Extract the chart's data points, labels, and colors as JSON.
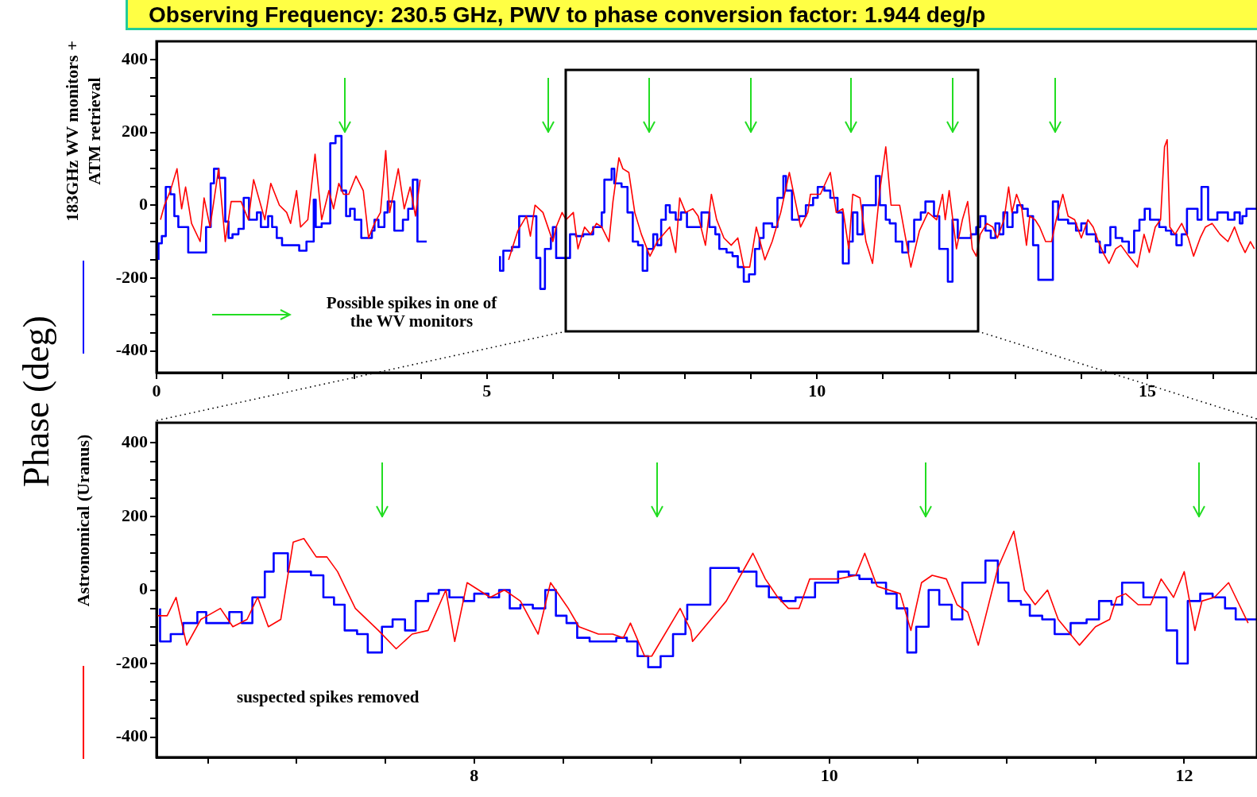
{
  "chart_data": [
    {
      "type": "line",
      "title": "Observing Frequency: 230.5 GHz, PWV to phase conversion factor: 1.944 deg/p",
      "ylabel": "Phase (deg)",
      "legend": "left",
      "grid": false,
      "marker": "none",
      "annotations": [
        "Possible spikes in one of the WV monitors"
      ],
      "xlim": [
        0,
        16.66
      ],
      "ylim": [
        -460,
        450
      ],
      "xticks": [
        0,
        {
          "value": 1,
          "label": null
        },
        {
          "value": 2,
          "label": null
        },
        {
          "value": 3,
          "label": null
        },
        {
          "value": 4,
          "label": null
        },
        5,
        {
          "value": 6,
          "label": null
        },
        {
          "value": 7,
          "label": null
        },
        {
          "value": 8,
          "label": null
        },
        {
          "value": 9,
          "label": null
        },
        10,
        {
          "value": 11,
          "label": null
        },
        {
          "value": 12,
          "label": null
        },
        {
          "value": 13,
          "label": null
        },
        {
          "value": 14,
          "label": null
        },
        15,
        {
          "value": 16,
          "label": null
        }
      ],
      "yticks": [
        -400,
        {
          "value": -350,
          "label": null
        },
        {
          "value": -300,
          "label": null
        },
        {
          "value": -250,
          "label": null
        },
        -200,
        {
          "value": -150,
          "label": null
        },
        {
          "value": -100,
          "label": null
        },
        {
          "value": -50,
          "label": null
        },
        0,
        {
          "value": 50,
          "label": null
        },
        {
          "value": 100,
          "label": null
        },
        {
          "value": 150,
          "label": null
        },
        200,
        {
          "value": 250,
          "label": null
        },
        {
          "value": 300,
          "label": null
        },
        {
          "value": 350,
          "label": null
        },
        400
      ],
      "series": [
        {
          "name": "183GHz WV monitors + ATM retrieval",
          "type": "step",
          "color": "#0000ff",
          "x": [
            0.03,
            0.08,
            0.14,
            0.21,
            0.27,
            0.33,
            0.48,
            0.75,
            0.82,
            0.87,
            0.94,
            1.04,
            1.09,
            1.15,
            1.24,
            1.32,
            1.4,
            1.52,
            1.58,
            1.69,
            1.75,
            1.82,
            1.9,
            2.03,
            2.16,
            2.27,
            2.38,
            2.41,
            2.5,
            2.63,
            2.71,
            2.8,
            2.87,
            2.93,
            3.0,
            3.1,
            3.13,
            3.26,
            3.3,
            3.36,
            3.45,
            3.5,
            3.6,
            3.66,
            3.73,
            3.81,
            3.88,
            3.95,
            4.03,
            4.09,
            4.6,
            5.2,
            5.25,
            5.38,
            5.49,
            5.75,
            5.81,
            5.88,
            5.97,
            6.0,
            6.05,
            6.26,
            6.35,
            6.46,
            6.61,
            6.74,
            6.78,
            6.89,
            6.93,
            7.04,
            7.13,
            7.21,
            7.29,
            7.36,
            7.43,
            7.52,
            7.58,
            7.64,
            7.71,
            7.77,
            7.86,
            7.94,
            8.03,
            8.25,
            8.37,
            8.46,
            8.52,
            8.63,
            8.72,
            8.8,
            8.89,
            8.97,
            9.06,
            9.13,
            9.19,
            9.32,
            9.4,
            9.49,
            9.53,
            9.62,
            9.73,
            9.83,
            9.94,
            10.01,
            10.11,
            10.2,
            10.31,
            10.39,
            10.48,
            10.54,
            10.61,
            10.69,
            10.89,
            10.95,
            11.04,
            11.1,
            11.19,
            11.29,
            11.38,
            11.47,
            11.57,
            11.64,
            11.77,
            11.85,
            11.98,
            12.05,
            12.13,
            12.33,
            12.41,
            12.47,
            12.55,
            12.63,
            12.7,
            12.76,
            12.82,
            12.88,
            12.96,
            13.03,
            13.11,
            13.19,
            13.27,
            13.35,
            13.57,
            13.65,
            13.8,
            13.92,
            14.0,
            14.08,
            14.22,
            14.28,
            14.36,
            14.44,
            14.52,
            14.62,
            14.72,
            14.8,
            14.88,
            14.96,
            15.04,
            15.18,
            15.28,
            15.36,
            15.44,
            15.52,
            15.6,
            15.76,
            15.82,
            15.92,
            16.06,
            16.22,
            16.32,
            16.4,
            16.44,
            16.5,
            16.56,
            16.66
          ],
          "values": [
            -150,
            -105,
            -85,
            50,
            30,
            -30,
            -60,
            -130,
            -60,
            60,
            100,
            75,
            -45,
            -90,
            -80,
            -65,
            20,
            -40,
            -20,
            -60,
            -30,
            -60,
            -90,
            -110,
            -110,
            -125,
            -100,
            15,
            -60,
            -50,
            170,
            190,
            40,
            -30,
            -10,
            -40,
            -90,
            -90,
            -70,
            -40,
            -60,
            -20,
            10,
            -70,
            -70,
            -40,
            -10,
            70,
            -100,
            -100,
            null,
            -140,
            -180,
            -125,
            -115,
            -30,
            -145,
            -230,
            -120,
            -90,
            -60,
            -145,
            -80,
            -85,
            -80,
            -60,
            -20,
            70,
            100,
            60,
            50,
            -20,
            -100,
            -110,
            -180,
            -120,
            -80,
            -110,
            -40,
            0,
            -20,
            -40,
            -20,
            -60,
            -20,
            -60,
            -80,
            -120,
            -130,
            -140,
            -170,
            -210,
            -190,
            -120,
            -90,
            -50,
            -60,
            20,
            80,
            40,
            -40,
            -30,
            0,
            20,
            50,
            40,
            20,
            -20,
            -160,
            -100,
            -20,
            -80,
            0,
            80,
            0,
            -40,
            -50,
            -100,
            -130,
            -100,
            -40,
            -20,
            10,
            -30,
            -120,
            -210,
            -40,
            -90,
            -80,
            -60,
            -30,
            -70,
            -90,
            -50,
            -80,
            -20,
            -60,
            -20,
            0,
            -10,
            -30,
            -110,
            -205,
            10,
            -40,
            -50,
            -70,
            -50,
            -80,
            -100,
            -130,
            -110,
            -60,
            -90,
            -100,
            -130,
            -70,
            -40,
            -10,
            -40,
            -60,
            -70,
            -80,
            -110,
            -80,
            -10,
            -40,
            50,
            -40,
            -20,
            -40,
            -20,
            -50,
            -30,
            -10,
            -10
          ]
        },
        {
          "type": "line",
          "color": "#ff0000",
          "x": [
            0.06,
            0.12,
            0.21,
            0.31,
            0.38,
            0.44,
            0.53,
            0.66,
            0.72,
            0.81,
            0.94,
            1.04,
            1.13,
            1.28,
            1.39,
            1.47,
            1.64,
            1.73,
            1.86,
            1.97,
            2.03,
            2.12,
            2.18,
            2.29,
            2.4,
            2.5,
            2.61,
            2.68,
            2.76,
            2.83,
            2.91,
            3.02,
            3.13,
            3.21,
            3.3,
            3.39,
            3.47,
            3.53,
            3.66,
            3.75,
            3.84,
            3.92,
            3.99,
            4.6,
            5.33,
            5.47,
            5.6,
            5.66,
            5.73,
            5.85,
            6.0,
            6.05,
            6.14,
            6.2,
            6.31,
            6.38,
            6.48,
            6.57,
            6.66,
            6.74,
            6.85,
            6.91,
            7.0,
            7.06,
            7.15,
            7.24,
            7.34,
            7.47,
            7.58,
            7.77,
            7.86,
            7.92,
            8.01,
            8.12,
            8.2,
            8.31,
            8.4,
            8.48,
            8.59,
            8.7,
            8.8,
            8.89,
            8.98,
            9.08,
            9.21,
            9.32,
            9.45,
            9.58,
            9.66,
            9.75,
            9.86,
            9.9,
            10.05,
            10.2,
            10.29,
            10.39,
            10.48,
            10.54,
            10.65,
            10.74,
            10.84,
            10.95,
            11.04,
            11.12,
            11.25,
            11.32,
            11.42,
            11.55,
            11.68,
            11.81,
            11.9,
            11.94,
            12.0,
            12.11,
            12.2,
            12.28,
            12.35,
            12.41,
            12.47,
            12.57,
            12.66,
            12.73,
            12.83,
            12.9,
            12.95,
            13.02,
            13.1,
            13.17,
            13.22,
            13.3,
            13.37,
            13.46,
            13.55,
            13.62,
            13.72,
            13.8,
            13.9,
            14.0,
            14.1,
            14.18,
            14.26,
            14.33,
            14.42,
            14.52,
            14.6,
            14.72,
            14.85,
            14.95,
            15.03,
            15.12,
            15.2,
            15.26,
            15.3,
            15.34,
            15.42,
            15.52,
            15.62,
            15.7,
            15.8,
            15.88,
            15.98,
            16.1,
            16.22,
            16.32,
            16.4,
            16.48,
            16.56,
            16.62
          ],
          "values": [
            -40,
            0,
            40,
            100,
            -10,
            50,
            -50,
            -100,
            20,
            -60,
            100,
            -100,
            10,
            10,
            -40,
            70,
            -40,
            60,
            0,
            -20,
            -50,
            40,
            -60,
            -40,
            140,
            -40,
            40,
            -10,
            60,
            30,
            30,
            80,
            40,
            -90,
            -50,
            -20,
            150,
            -20,
            100,
            -10,
            50,
            -30,
            70,
            null,
            -150,
            -70,
            -30,
            -85,
            0,
            -20,
            -100,
            -60,
            -20,
            -40,
            -20,
            -120,
            -60,
            -80,
            -50,
            -60,
            -100,
            10,
            130,
            100,
            90,
            -20,
            -80,
            -140,
            -100,
            -60,
            -130,
            20,
            -20,
            -10,
            -30,
            -110,
            30,
            -40,
            -90,
            -110,
            -90,
            -170,
            -170,
            -60,
            -150,
            -100,
            -20,
            90,
            20,
            -60,
            -20,
            30,
            30,
            90,
            -20,
            -10,
            -120,
            30,
            20,
            -100,
            -160,
            40,
            160,
            0,
            0,
            -70,
            -170,
            -70,
            -20,
            -40,
            30,
            -40,
            40,
            -120,
            -40,
            10,
            -120,
            -140,
            -80,
            -50,
            -60,
            -90,
            -40,
            50,
            -20,
            30,
            -10,
            -110,
            -30,
            -40,
            -60,
            -100,
            -100,
            -40,
            30,
            -30,
            -40,
            -90,
            -40,
            -60,
            -100,
            -130,
            -160,
            -120,
            -110,
            -140,
            -170,
            -80,
            -130,
            -60,
            -40,
            160,
            180,
            -60,
            -80,
            -50,
            -90,
            -140,
            -90,
            -60,
            -50,
            -80,
            -100,
            -60,
            -100,
            -130,
            -100,
            -120
          ]
        }
      ]
    },
    {
      "type": "line",
      "legend": "left",
      "grid": false,
      "marker": "none",
      "annotations": [
        "suspected spikes removed"
      ],
      "xlim": [
        6.21,
        12.41
      ],
      "ylim": [
        -455,
        455
      ],
      "xticks": [
        {
          "value": 6.5,
          "label": null
        },
        {
          "value": 7,
          "label": null
        },
        {
          "value": 7.5,
          "label": null
        },
        8,
        {
          "value": 8.5,
          "label": null
        },
        {
          "value": 9,
          "label": null
        },
        {
          "value": 9.5,
          "label": null
        },
        10,
        {
          "value": 10.5,
          "label": null
        },
        {
          "value": 11,
          "label": null
        },
        {
          "value": 11.5,
          "label": null
        },
        12
      ],
      "yticks": [
        -400,
        {
          "value": -350,
          "label": null
        },
        {
          "value": -300,
          "label": null
        },
        {
          "value": -250,
          "label": null
        },
        -200,
        {
          "value": -150,
          "label": null
        },
        {
          "value": -100,
          "label": null
        },
        {
          "value": -50,
          "label": null
        },
        0,
        {
          "value": 50,
          "label": null
        },
        {
          "value": 100,
          "label": null
        },
        {
          "value": 150,
          "label": null
        },
        200,
        {
          "value": 250,
          "label": null
        },
        {
          "value": 300,
          "label": null
        },
        {
          "value": 350,
          "label": null
        },
        400
      ],
      "series": [
        {
          "type": "step",
          "color": "#0000ff",
          "x": [
            6.23,
            6.29,
            6.36,
            6.44,
            6.49,
            6.55,
            6.62,
            6.69,
            6.75,
            6.82,
            6.87,
            6.95,
            7.08,
            7.15,
            7.21,
            7.27,
            7.34,
            7.4,
            7.48,
            7.54,
            7.61,
            7.67,
            7.74,
            7.8,
            7.86,
            7.94,
            8.0,
            8.08,
            8.14,
            8.2,
            8.26,
            8.33,
            8.4,
            8.46,
            8.52,
            8.58,
            8.65,
            8.72,
            8.8,
            8.86,
            8.92,
            8.98,
            9.05,
            9.12,
            9.19,
            9.2,
            9.33,
            9.49,
            9.59,
            9.66,
            9.73,
            9.81,
            9.92,
            9.99,
            10.05,
            10.11,
            10.17,
            10.24,
            10.32,
            10.38,
            10.44,
            10.49,
            10.56,
            10.62,
            10.69,
            10.75,
            10.88,
            10.95,
            11.01,
            11.08,
            11.13,
            11.2,
            11.27,
            11.36,
            11.45,
            11.52,
            11.59,
            11.65,
            11.77,
            11.84,
            11.9,
            11.96,
            12.02,
            12.09,
            12.16,
            12.23,
            12.29,
            12.35,
            12.41
          ],
          "values": [
            -50,
            -140,
            -120,
            -90,
            -60,
            -90,
            -90,
            -60,
            -90,
            -20,
            50,
            100,
            50,
            40,
            -20,
            -40,
            -110,
            -120,
            -170,
            -100,
            -80,
            -110,
            -30,
            -10,
            0,
            -20,
            -30,
            -10,
            -20,
            0,
            -50,
            -40,
            -50,
            0,
            -70,
            -90,
            -130,
            -140,
            -140,
            -130,
            -140,
            -180,
            -210,
            -180,
            -120,
            -80,
            -40,
            60,
            50,
            10,
            -20,
            -30,
            -20,
            20,
            20,
            50,
            40,
            30,
            20,
            -10,
            -50,
            -170,
            -100,
            0,
            -40,
            -80,
            20,
            80,
            20,
            -30,
            -40,
            -70,
            -80,
            -120,
            -90,
            -80,
            -30,
            -40,
            20,
            -20,
            -20,
            -110,
            -200,
            -30,
            -10,
            -20,
            -50,
            -80,
            -80
          ]
        },
        {
          "name": "Astronomical (Uranus)",
          "type": "line",
          "color": "#ff0000",
          "x": [
            6.21,
            6.27,
            6.32,
            6.38,
            6.46,
            6.57,
            6.64,
            6.72,
            6.78,
            6.84,
            6.91,
            6.98,
            7.04,
            7.11,
            7.17,
            7.23,
            7.33,
            7.46,
            7.56,
            7.65,
            7.74,
            7.84,
            7.89,
            7.96,
            8.09,
            8.17,
            8.26,
            8.36,
            8.43,
            8.53,
            8.59,
            8.7,
            8.78,
            8.84,
            8.88,
            8.96,
            9.0,
            9.16,
            9.22,
            9.23,
            9.42,
            9.57,
            9.64,
            9.71,
            9.77,
            9.83,
            9.89,
            10.05,
            10.15,
            10.2,
            10.27,
            10.4,
            10.46,
            10.52,
            10.58,
            10.66,
            10.72,
            10.78,
            10.84,
            10.95,
            11.04,
            11.1,
            11.16,
            11.23,
            11.29,
            11.41,
            11.5,
            11.58,
            11.62,
            11.67,
            11.74,
            11.81,
            11.87,
            11.94,
            12.0,
            12.06,
            12.1,
            12.17,
            12.25,
            12.31,
            12.36
          ],
          "values": [
            -70,
            -70,
            -20,
            -150,
            -80,
            -50,
            -100,
            -80,
            -20,
            -100,
            -80,
            130,
            140,
            90,
            90,
            50,
            -50,
            -110,
            -160,
            -120,
            -110,
            0,
            -140,
            20,
            -20,
            0,
            -30,
            -120,
            20,
            -50,
            -100,
            -120,
            -120,
            -130,
            -90,
            -180,
            -180,
            -50,
            -110,
            -140,
            -30,
            100,
            30,
            -20,
            -50,
            -50,
            30,
            30,
            40,
            100,
            10,
            -10,
            -110,
            20,
            40,
            30,
            -40,
            -60,
            -150,
            60,
            160,
            0,
            -40,
            0,
            -80,
            -150,
            -100,
            -80,
            -20,
            -10,
            -40,
            -40,
            30,
            -20,
            50,
            -110,
            -30,
            -20,
            20,
            -40,
            -90
          ]
        }
      ]
    }
  ]
}
